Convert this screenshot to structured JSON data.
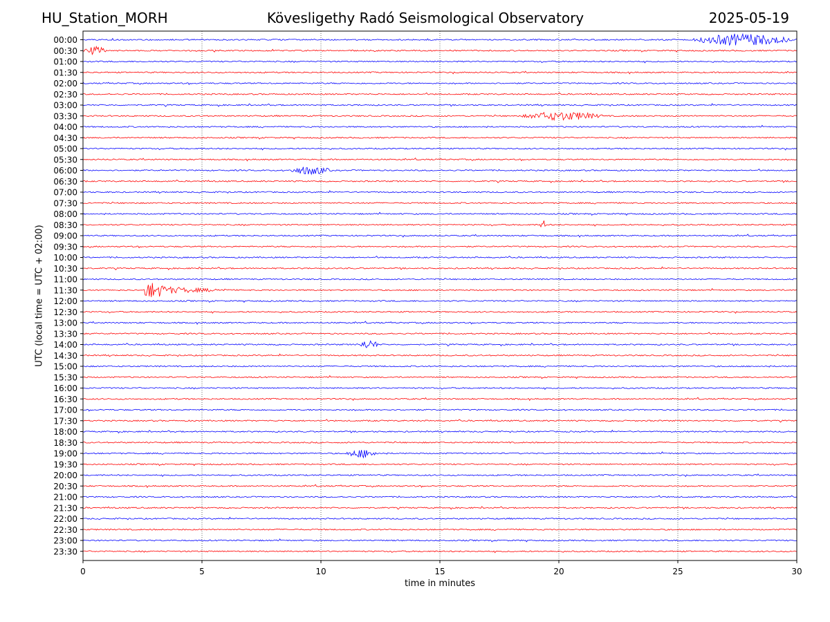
{
  "header": {
    "station": "HU_Station_MORH",
    "title": "Kövesligethy Radó Seismological Observatory",
    "date": "2025-05-19"
  },
  "chart_data": {
    "type": "line",
    "title": "Kövesligethy Radó Seismological Observatory",
    "xlabel": "time in minutes",
    "ylabel": "UTC (local time = UTC + 02:00)",
    "xlim": [
      0,
      30
    ],
    "xticks": [
      0,
      5,
      10,
      15,
      20,
      25,
      30
    ],
    "grid": "vertical dotted at major x ticks",
    "colors": {
      "even_rows": "#0000ff",
      "odd_rows": "#ff0000"
    },
    "rows": [
      "00:00",
      "00:30",
      "01:00",
      "01:30",
      "02:00",
      "02:30",
      "03:00",
      "03:30",
      "04:00",
      "04:30",
      "05:00",
      "05:30",
      "06:00",
      "06:30",
      "07:00",
      "07:30",
      "08:00",
      "08:30",
      "09:00",
      "09:30",
      "10:00",
      "10:30",
      "11:00",
      "11:30",
      "12:00",
      "12:30",
      "13:00",
      "13:30",
      "14:00",
      "14:30",
      "15:00",
      "15:30",
      "16:00",
      "16:30",
      "17:00",
      "17:30",
      "18:00",
      "18:30",
      "19:00",
      "19:30",
      "20:00",
      "20:30",
      "21:00",
      "21:30",
      "22:00",
      "22:30",
      "23:00",
      "23:30"
    ],
    "events": [
      {
        "row": "00:00",
        "start_min": 25.5,
        "end_min": 30.0,
        "amplitude": "medium"
      },
      {
        "row": "00:30",
        "start_min": 0.0,
        "end_min": 1.0,
        "amplitude": "small"
      },
      {
        "row": "03:30",
        "start_min": 18.3,
        "end_min": 22.0,
        "amplitude": "small"
      },
      {
        "row": "06:00",
        "start_min": 8.6,
        "end_min": 10.5,
        "amplitude": "small"
      },
      {
        "row": "08:30",
        "start_min": 19.2,
        "end_min": 19.5,
        "amplitude": "small"
      },
      {
        "row": "11:30",
        "start_min": 2.6,
        "end_min": 6.0,
        "amplitude": "large"
      },
      {
        "row": "14:00",
        "start_min": 11.5,
        "end_min": 12.5,
        "amplitude": "small"
      },
      {
        "row": "19:00",
        "start_min": 11.0,
        "end_min": 12.5,
        "amplitude": "small"
      }
    ]
  }
}
